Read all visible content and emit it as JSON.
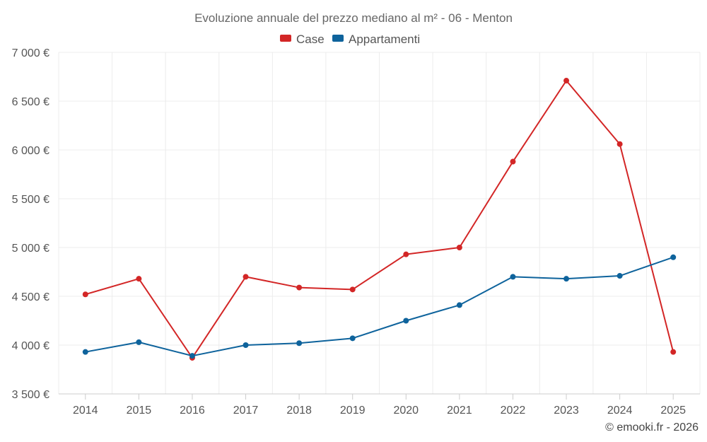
{
  "chart_data": {
    "type": "line",
    "title": "Evoluzione annuale del prezzo mediano al m² - 06 - Menton",
    "categories": [
      "2014",
      "2015",
      "2016",
      "2017",
      "2018",
      "2019",
      "2020",
      "2021",
      "2022",
      "2023",
      "2024",
      "2025"
    ],
    "series": [
      {
        "name": "Case",
        "color": "#d32626",
        "values": [
          4520,
          4680,
          3870,
          4700,
          4590,
          4570,
          4930,
          5000,
          5880,
          6710,
          6060,
          3930
        ]
      },
      {
        "name": "Appartamenti",
        "color": "#0e639c",
        "values": [
          3930,
          4030,
          3890,
          4000,
          4020,
          4070,
          4250,
          4410,
          4700,
          4680,
          4710,
          4900
        ]
      }
    ],
    "ylim": [
      3500,
      7000
    ],
    "yticks": [
      3500,
      4000,
      4500,
      5000,
      5500,
      6000,
      6500,
      7000
    ],
    "ytick_labels": [
      "3 500 €",
      "4 000 €",
      "4 500 €",
      "5 000 €",
      "5 500 €",
      "6 000 €",
      "6 500 €",
      "7 000 €"
    ],
    "xlabel": "",
    "ylabel": "",
    "grid": true,
    "legend_position": "top-center"
  },
  "credit": "© emooki.fr - 2026"
}
